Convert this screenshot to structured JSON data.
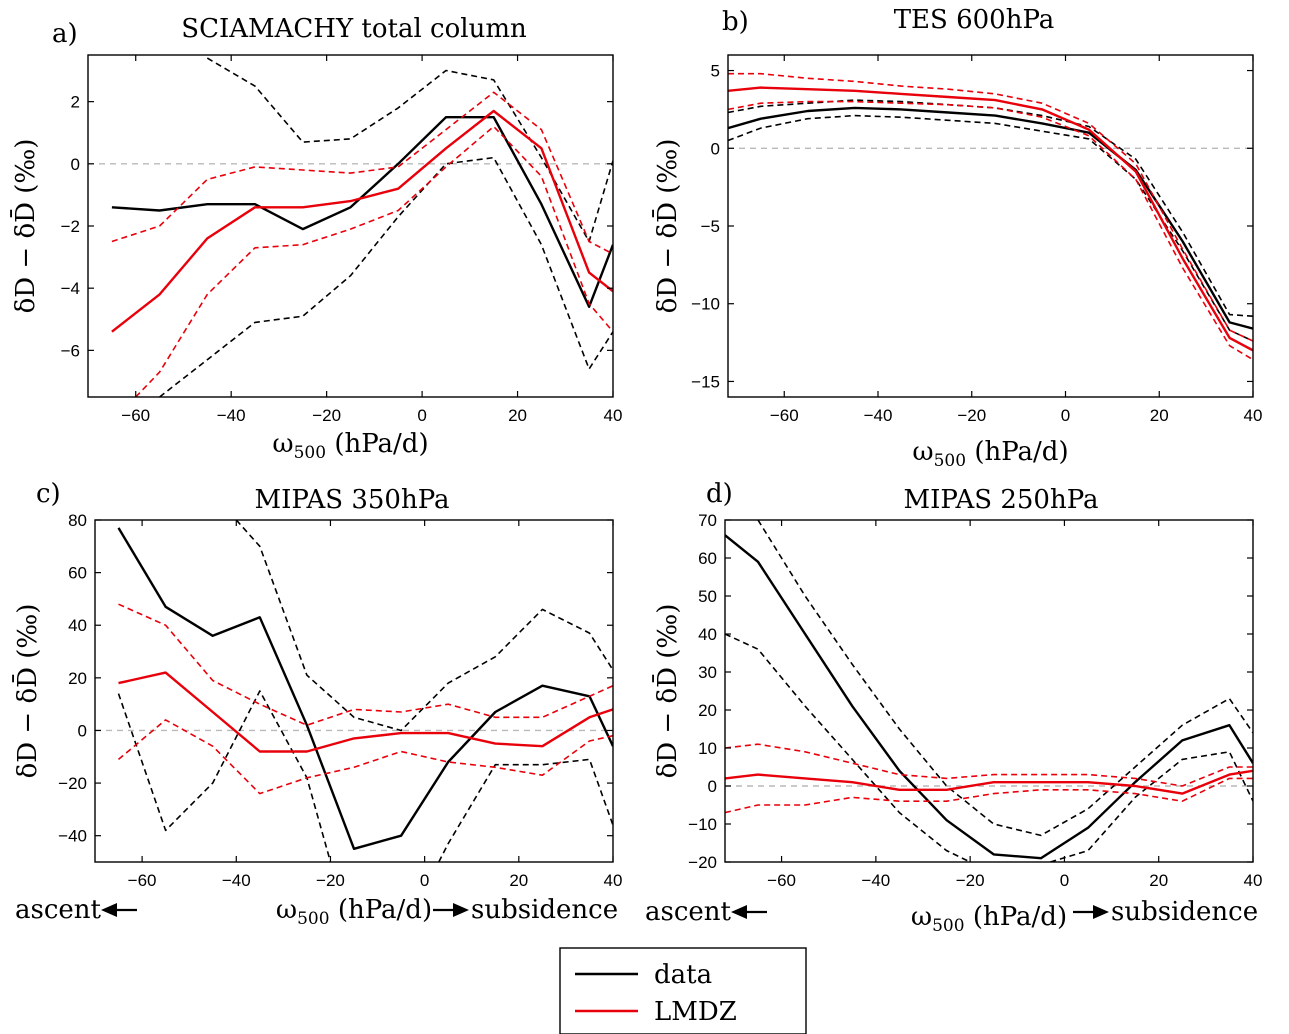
{
  "chart_data": [
    {
      "id": "a",
      "type": "line",
      "panel_label": "a)",
      "title": "SCIAMACHY total column",
      "xlabel": "ω500 (hPa/d)",
      "ylabel": "δD − δD̄ (‰)",
      "xlim": [
        -70,
        40
      ],
      "ylim": [
        -7.5,
        3.5
      ],
      "xticks": [
        -60,
        -40,
        -20,
        0,
        20,
        40
      ],
      "yticks": [
        -6,
        -4,
        -2,
        0,
        2
      ],
      "zero_line": true,
      "direction_labels": null,
      "series": [
        {
          "role": "data",
          "color": "#000000",
          "dash": false,
          "x": [
            -65,
            -55,
            -45,
            -35,
            -25,
            -15,
            -5,
            5,
            15,
            25,
            35,
            40
          ],
          "y": [
            -1.4,
            -1.5,
            -1.3,
            -1.3,
            -2.1,
            -1.4,
            0.0,
            1.5,
            1.5,
            -1.3,
            -4.6,
            -2.6
          ]
        },
        {
          "role": "data",
          "color": "#000000",
          "dash": true,
          "x": [
            -45,
            -35,
            -25,
            -15,
            -5,
            5,
            15,
            25,
            35,
            40
          ],
          "y": [
            3.4,
            2.5,
            0.7,
            0.8,
            1.8,
            3.0,
            2.7,
            0.2,
            -2.5,
            0.1
          ]
        },
        {
          "role": "data",
          "color": "#000000",
          "dash": true,
          "x": [
            -55,
            -45,
            -35,
            -25,
            -15,
            -5,
            5,
            15,
            25,
            35,
            40
          ],
          "y": [
            -7.5,
            -6.3,
            -5.1,
            -4.9,
            -3.6,
            -1.7,
            0.0,
            0.2,
            -2.6,
            -6.6,
            -5.4
          ]
        },
        {
          "role": "model",
          "color": "#e8000b",
          "dash": false,
          "x": [
            -65,
            -55,
            -45,
            -35,
            -25,
            -15,
            -5,
            5,
            15,
            25,
            35,
            40
          ],
          "y": [
            -5.4,
            -4.2,
            -2.4,
            -1.4,
            -1.4,
            -1.2,
            -0.8,
            0.5,
            1.7,
            0.5,
            -3.5,
            -4.1
          ]
        },
        {
          "role": "model",
          "color": "#e8000b",
          "dash": true,
          "x": [
            -65,
            -55,
            -45,
            -35,
            -25,
            -15,
            -5,
            5,
            15,
            25,
            35,
            40
          ],
          "y": [
            -2.5,
            -2.0,
            -0.5,
            -0.1,
            -0.2,
            -0.3,
            -0.1,
            1.1,
            2.3,
            1.1,
            -2.5,
            -2.9
          ]
        },
        {
          "role": "model",
          "color": "#e8000b",
          "dash": true,
          "x": [
            -60,
            -55,
            -45,
            -35,
            -25,
            -15,
            -5,
            5,
            15,
            25,
            35,
            40
          ],
          "y": [
            -7.5,
            -6.7,
            -4.2,
            -2.7,
            -2.6,
            -2.1,
            -1.5,
            -0.1,
            1.2,
            -0.4,
            -4.5,
            -5.4
          ]
        }
      ]
    },
    {
      "id": "b",
      "type": "line",
      "panel_label": "b)",
      "title": "TES 600hPa",
      "xlabel": "ω500 (hPa/d)",
      "ylabel": "δD − δD̄ (‰)",
      "xlim": [
        -72,
        40
      ],
      "ylim": [
        -16,
        6
      ],
      "xticks": [
        -60,
        -40,
        -20,
        0,
        20,
        40
      ],
      "yticks": [
        -15,
        -10,
        -5,
        0,
        5
      ],
      "zero_line": true,
      "direction_labels": null,
      "series": [
        {
          "role": "data",
          "color": "#000000",
          "dash": false,
          "x": [
            -72,
            -65,
            -55,
            -45,
            -35,
            -25,
            -15,
            -5,
            5,
            15,
            25,
            35,
            40
          ],
          "y": [
            1.3,
            1.9,
            2.4,
            2.6,
            2.5,
            2.3,
            2.1,
            1.6,
            1.0,
            -1.4,
            -6.0,
            -11.2,
            -11.6
          ]
        },
        {
          "role": "data",
          "color": "#000000",
          "dash": true,
          "x": [
            -72,
            -65,
            -55,
            -45,
            -35,
            -25,
            -15,
            -5,
            5,
            15,
            25,
            35,
            40
          ],
          "y": [
            2.3,
            2.7,
            2.9,
            3.1,
            3.0,
            2.8,
            2.6,
            2.1,
            1.4,
            -0.7,
            -5.4,
            -10.7,
            -10.8
          ]
        },
        {
          "role": "data",
          "color": "#000000",
          "dash": true,
          "x": [
            -72,
            -65,
            -55,
            -45,
            -35,
            -25,
            -15,
            -5,
            5,
            15,
            25,
            35,
            40
          ],
          "y": [
            0.5,
            1.3,
            1.9,
            2.1,
            2.0,
            1.8,
            1.6,
            1.1,
            0.6,
            -2.0,
            -6.6,
            -11.7,
            -12.4
          ]
        },
        {
          "role": "model",
          "color": "#e8000b",
          "dash": false,
          "x": [
            -72,
            -65,
            -55,
            -45,
            -35,
            -25,
            -15,
            -5,
            5,
            15,
            25,
            35,
            40
          ],
          "y": [
            3.7,
            3.9,
            3.8,
            3.7,
            3.5,
            3.3,
            3.1,
            2.5,
            1.2,
            -1.5,
            -7.1,
            -12.2,
            -13.0
          ]
        },
        {
          "role": "model",
          "color": "#e8000b",
          "dash": true,
          "x": [
            -72,
            -65,
            -55,
            -45,
            -35,
            -25,
            -15,
            -5,
            5,
            15,
            25,
            35,
            40
          ],
          "y": [
            4.8,
            4.8,
            4.5,
            4.3,
            4.0,
            3.8,
            3.5,
            2.9,
            1.6,
            -1.0,
            -6.5,
            -11.7,
            -12.4
          ]
        },
        {
          "role": "model",
          "color": "#e8000b",
          "dash": true,
          "x": [
            -72,
            -65,
            -55,
            -45,
            -35,
            -25,
            -15,
            -5,
            5,
            15,
            25,
            35,
            40
          ],
          "y": [
            2.5,
            2.9,
            3.0,
            3.0,
            2.9,
            2.8,
            2.6,
            2.0,
            0.8,
            -2.0,
            -7.7,
            -12.7,
            -13.6
          ]
        }
      ]
    },
    {
      "id": "c",
      "type": "line",
      "panel_label": "c)",
      "title": "MIPAS 350hPa",
      "xlabel": "ω500 (hPa/d)",
      "ylabel": "δD − δD̄ (‰)",
      "xlim": [
        -70,
        40
      ],
      "ylim": [
        -50,
        80
      ],
      "xticks": [
        -60,
        -40,
        -20,
        0,
        20,
        40
      ],
      "yticks": [
        -40,
        -20,
        0,
        20,
        40,
        60,
        80
      ],
      "zero_line": true,
      "direction_labels": {
        "left": "ascent",
        "right": "subsidence"
      },
      "series": [
        {
          "role": "data",
          "color": "#000000",
          "dash": false,
          "x": [
            -65,
            -55,
            -45,
            -35,
            -25,
            -15,
            -5,
            5,
            15,
            25,
            35,
            40
          ],
          "y": [
            77,
            47,
            36,
            43,
            2,
            -45,
            -40,
            -12,
            7,
            17,
            13,
            -6
          ]
        },
        {
          "role": "data",
          "color": "#000000",
          "dash": true,
          "x": [
            -40,
            -35,
            -25,
            -15,
            -5,
            5,
            15,
            25,
            35,
            40
          ],
          "y": [
            80,
            70,
            21,
            5,
            0,
            18,
            28,
            46,
            37,
            23
          ]
        },
        {
          "role": "data",
          "color": "#000000",
          "dash": true,
          "x": [
            -65,
            -55,
            -45,
            -35,
            -25,
            -20
          ],
          "y": [
            14,
            -38,
            -20,
            15,
            -18,
            -50
          ]
        },
        {
          "role": "data",
          "color": "#000000",
          "dash": true,
          "x": [
            3,
            5,
            15,
            25,
            35,
            40
          ],
          "y": [
            -50,
            -43,
            -13,
            -13,
            -11,
            -36
          ]
        },
        {
          "role": "model",
          "color": "#e8000b",
          "dash": false,
          "x": [
            -65,
            -55,
            -45,
            -35,
            -25,
            -15,
            -5,
            5,
            15,
            25,
            35,
            40
          ],
          "y": [
            18,
            22,
            7,
            -8,
            -8,
            -3,
            -1,
            -1,
            -5,
            -6,
            5,
            8
          ]
        },
        {
          "role": "model",
          "color": "#e8000b",
          "dash": true,
          "x": [
            -65,
            -55,
            -45,
            -35,
            -25,
            -15,
            -5,
            5,
            15,
            25,
            35,
            40
          ],
          "y": [
            48,
            40,
            19,
            10,
            2,
            8,
            7,
            10,
            5,
            5,
            13,
            17
          ]
        },
        {
          "role": "model",
          "color": "#e8000b",
          "dash": true,
          "x": [
            -65,
            -55,
            -45,
            -35,
            -25,
            -15,
            -5,
            5,
            15,
            25,
            35,
            40
          ],
          "y": [
            -11,
            4,
            -6,
            -24,
            -18,
            -14,
            -8,
            -12,
            -14,
            -17,
            -4,
            -2
          ]
        }
      ]
    },
    {
      "id": "d",
      "type": "line",
      "panel_label": "d)",
      "title": "MIPAS 250hPa",
      "xlabel": "ω500 (hPa/d)",
      "ylabel": "δD − δD̄ (‰)",
      "xlim": [
        -72,
        40
      ],
      "ylim": [
        -20,
        70
      ],
      "xticks": [
        -60,
        -40,
        -20,
        0,
        20,
        40
      ],
      "yticks": [
        -20,
        -10,
        0,
        10,
        20,
        30,
        40,
        50,
        60,
        70
      ],
      "zero_line": true,
      "direction_labels": {
        "left": "ascent",
        "right": "subsidence"
      },
      "series": [
        {
          "role": "data",
          "color": "#000000",
          "dash": false,
          "x": [
            -72,
            -65,
            -55,
            -45,
            -35,
            -25,
            -15,
            -5,
            5,
            15,
            25,
            35,
            40
          ],
          "y": [
            66,
            59,
            40,
            21,
            4,
            -9,
            -18,
            -19,
            -11,
            1,
            12,
            16,
            6
          ]
        },
        {
          "role": "data",
          "color": "#000000",
          "dash": true,
          "x": [
            -65,
            -55,
            -45,
            -35,
            -25,
            -15,
            -5,
            5,
            15,
            25,
            35,
            40
          ],
          "y": [
            70,
            50,
            32,
            15,
            0,
            -10,
            -13,
            -6,
            5,
            16,
            23,
            14
          ]
        },
        {
          "role": "data",
          "color": "#000000",
          "dash": true,
          "x": [
            -72,
            -65,
            -55,
            -45,
            -35,
            -25,
            -20
          ],
          "y": [
            40,
            36,
            21,
            7,
            -7,
            -17,
            -20
          ]
        },
        {
          "role": "data",
          "color": "#000000",
          "dash": true,
          "x": [
            -3,
            5,
            15,
            25,
            35,
            40
          ],
          "y": [
            -20,
            -17,
            -3,
            7,
            9,
            -4
          ]
        },
        {
          "role": "model",
          "color": "#e8000b",
          "dash": false,
          "x": [
            -72,
            -65,
            -55,
            -45,
            -35,
            -25,
            -15,
            -5,
            5,
            15,
            25,
            35,
            40
          ],
          "y": [
            2,
            3,
            2,
            1,
            -1,
            -1,
            1,
            1,
            1,
            0,
            -2,
            3,
            4
          ]
        },
        {
          "role": "model",
          "color": "#e8000b",
          "dash": true,
          "x": [
            -72,
            -65,
            -55,
            -45,
            -35,
            -25,
            -15,
            -5,
            5,
            15,
            25,
            35,
            40
          ],
          "y": [
            10,
            11,
            9,
            6,
            3,
            2,
            3,
            3,
            3,
            2,
            0,
            5,
            5
          ]
        },
        {
          "role": "model",
          "color": "#e8000b",
          "dash": true,
          "x": [
            -72,
            -65,
            -55,
            -45,
            -35,
            -25,
            -15,
            -5,
            5,
            15,
            25,
            35,
            40
          ],
          "y": [
            -7,
            -5,
            -5,
            -3,
            -4,
            -4,
            -2,
            -1,
            -1,
            -2,
            -4,
            2,
            2
          ]
        }
      ]
    }
  ],
  "legend": {
    "items": [
      {
        "label": "data",
        "color": "#000000"
      },
      {
        "label": "LMDZ",
        "color": "#e8000b"
      }
    ]
  }
}
